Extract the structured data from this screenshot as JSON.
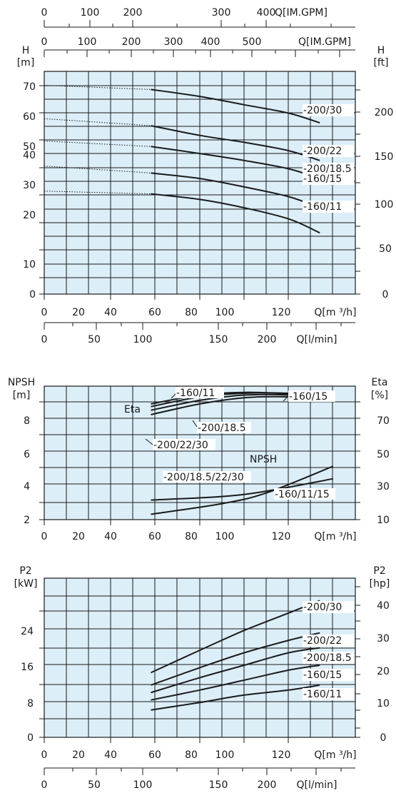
{
  "chart_data": [
    {
      "type": "line",
      "panel": "head",
      "x_top_axes": [
        {
          "label": "Q[IM.GPM]",
          "ticks": [
            "0",
            "100",
            "200",
            "300",
            "400"
          ]
        },
        {
          "label": "Q[IM.GPM]",
          "ticks": [
            "0",
            "100",
            "200",
            "300",
            "400",
            "500"
          ]
        }
      ],
      "x_bottom_axes": [
        {
          "label": "Q[m ³/h]",
          "ticks": [
            "0",
            "20",
            "40",
            "60",
            "80",
            "100",
            "120"
          ]
        },
        {
          "label": "Q[l/min]",
          "ticks": [
            "0",
            "50",
            "100",
            "150",
            "200"
          ]
        }
      ],
      "y_left": {
        "label_top": "H",
        "unit": "[m]",
        "ticks": [
          "0",
          "10",
          "20",
          "30",
          "40",
          "50",
          "60",
          "70"
        ],
        "lim": [
          0,
          80
        ]
      },
      "y_right": {
        "label_top": "H",
        "unit": "[ft]",
        "ticks": [
          "0",
          "50",
          "100",
          "150",
          "200"
        ]
      },
      "xlim": [
        0,
        140
      ],
      "series": [
        {
          "name": "200/30",
          "x": [
            0,
            48,
            70,
            90,
            110,
            124
          ],
          "y": [
            75,
            73.5,
            71,
            68,
            65,
            61.5
          ]
        },
        {
          "name": "200/22",
          "x": [
            0,
            48,
            70,
            90,
            110,
            124
          ],
          "y": [
            63,
            60.5,
            57,
            54.5,
            51.5,
            48
          ]
        },
        {
          "name": "200/18.5",
          "x": [
            0,
            48,
            70,
            90,
            110,
            124
          ],
          "y": [
            55,
            53,
            50.5,
            48,
            45,
            41.5
          ]
        },
        {
          "name": "160/15",
          "x": [
            0,
            48,
            70,
            90,
            110,
            124
          ],
          "y": [
            46,
            43.5,
            41.5,
            38.5,
            35,
            31
          ]
        },
        {
          "name": "160/11",
          "x": [
            0,
            48,
            70,
            90,
            110,
            124
          ],
          "y": [
            37,
            36,
            34,
            31,
            27,
            22
          ]
        }
      ],
      "dotted_extension_x_range": [
        0,
        48
      ]
    },
    {
      "type": "line",
      "panel": "npsh-eta",
      "x_bottom": {
        "label": "Q[m ³/h]",
        "ticks": [
          "0",
          "20",
          "40",
          "60",
          "80",
          "100",
          "120"
        ]
      },
      "y_left": {
        "label_top": "NPSH",
        "unit": "[m]",
        "ticks": [
          "2",
          "4",
          "6",
          "8"
        ],
        "lim": [
          2,
          9.5
        ]
      },
      "y_right": {
        "label_top": "Eta",
        "unit": "[%]",
        "ticks": [
          "10",
          "30",
          "50",
          "70"
        ],
        "lim": [
          10,
          85
        ]
      },
      "xlim": [
        0,
        140
      ],
      "annotations": [
        "Eta",
        "NPSH"
      ],
      "series": [
        {
          "name": "160/11",
          "axis": "eta",
          "x": [
            48,
            70,
            90,
            110,
            130
          ],
          "y": [
            75,
            80,
            81.5,
            80.5,
            77
          ]
        },
        {
          "name": "160/15",
          "axis": "eta",
          "x": [
            48,
            70,
            90,
            110,
            130
          ],
          "y": [
            73.5,
            79,
            81,
            81,
            79
          ]
        },
        {
          "name": "200/18.5",
          "axis": "eta",
          "x": [
            48,
            70,
            90,
            110,
            130
          ],
          "y": [
            71.5,
            77,
            80,
            80,
            78
          ]
        },
        {
          "name": "200/22/30",
          "axis": "eta",
          "x": [
            48,
            70,
            90,
            110,
            130
          ],
          "y": [
            69,
            75,
            78.5,
            79,
            77.5
          ]
        },
        {
          "name": "200/18.5/22/30",
          "axis": "npsh",
          "x": [
            48,
            80,
            100,
            130
          ],
          "y": [
            2.3,
            2.9,
            3.5,
            5.0
          ]
        },
        {
          "name": "160/11/15",
          "axis": "npsh",
          "x": [
            48,
            80,
            100,
            130
          ],
          "y": [
            3.1,
            3.3,
            3.6,
            4.3
          ]
        }
      ]
    },
    {
      "type": "line",
      "panel": "power",
      "x_bottom_axes": [
        {
          "label": "Q[m ³/h]",
          "ticks": [
            "0",
            "20",
            "40",
            "60",
            "80",
            "100",
            "120"
          ]
        },
        {
          "label": "Q[l/min]",
          "ticks": [
            "0",
            "50",
            "100",
            "150",
            "200"
          ]
        }
      ],
      "y_left": {
        "label_top": "P2",
        "unit": "[kW]",
        "ticks": [
          "0",
          "8",
          "16",
          "24"
        ],
        "lim": [
          0,
          32
        ]
      },
      "y_right": {
        "label_top": "P2",
        "unit": "[hp]",
        "ticks": [
          "0",
          "10",
          "20",
          "30",
          "40"
        ]
      },
      "xlim": [
        0,
        140
      ],
      "series": [
        {
          "name": "200/30",
          "x": [
            48,
            70,
            90,
            110,
            124
          ],
          "y": [
            13,
            17.5,
            21.5,
            25,
            27.5
          ]
        },
        {
          "name": "200/22",
          "x": [
            48,
            70,
            90,
            110,
            124
          ],
          "y": [
            10.5,
            14,
            17,
            19.5,
            21
          ]
        },
        {
          "name": "200/18.5",
          "x": [
            48,
            70,
            90,
            110,
            124
          ],
          "y": [
            9,
            12,
            14.5,
            17,
            18
          ]
        },
        {
          "name": "160/15",
          "x": [
            48,
            70,
            90,
            110,
            124
          ],
          "y": [
            7.5,
            9.5,
            11.5,
            13.5,
            14.5
          ]
        },
        {
          "name": "160/11",
          "x": [
            48,
            70,
            90,
            110,
            124
          ],
          "y": [
            5.5,
            7,
            8.5,
            9.5,
            10.5
          ]
        }
      ]
    }
  ],
  "labels": {
    "head": [
      "-200/30",
      "-200/22",
      "-200/18.5",
      "-160/15",
      "-160/11"
    ],
    "npsh_eta": [
      "-160/11",
      "-160/15",
      "-200/18.5",
      "-200/22/30",
      "-200/18.5/22/30",
      "-160/11/15"
    ],
    "power": [
      "-200/30",
      "-200/22",
      "-200/18.5",
      "-160/15",
      "-160/11"
    ]
  },
  "colors": {
    "plot_bg": "#dceef8",
    "grid": "#1a1a1a",
    "curve": "#1a1a1a"
  }
}
